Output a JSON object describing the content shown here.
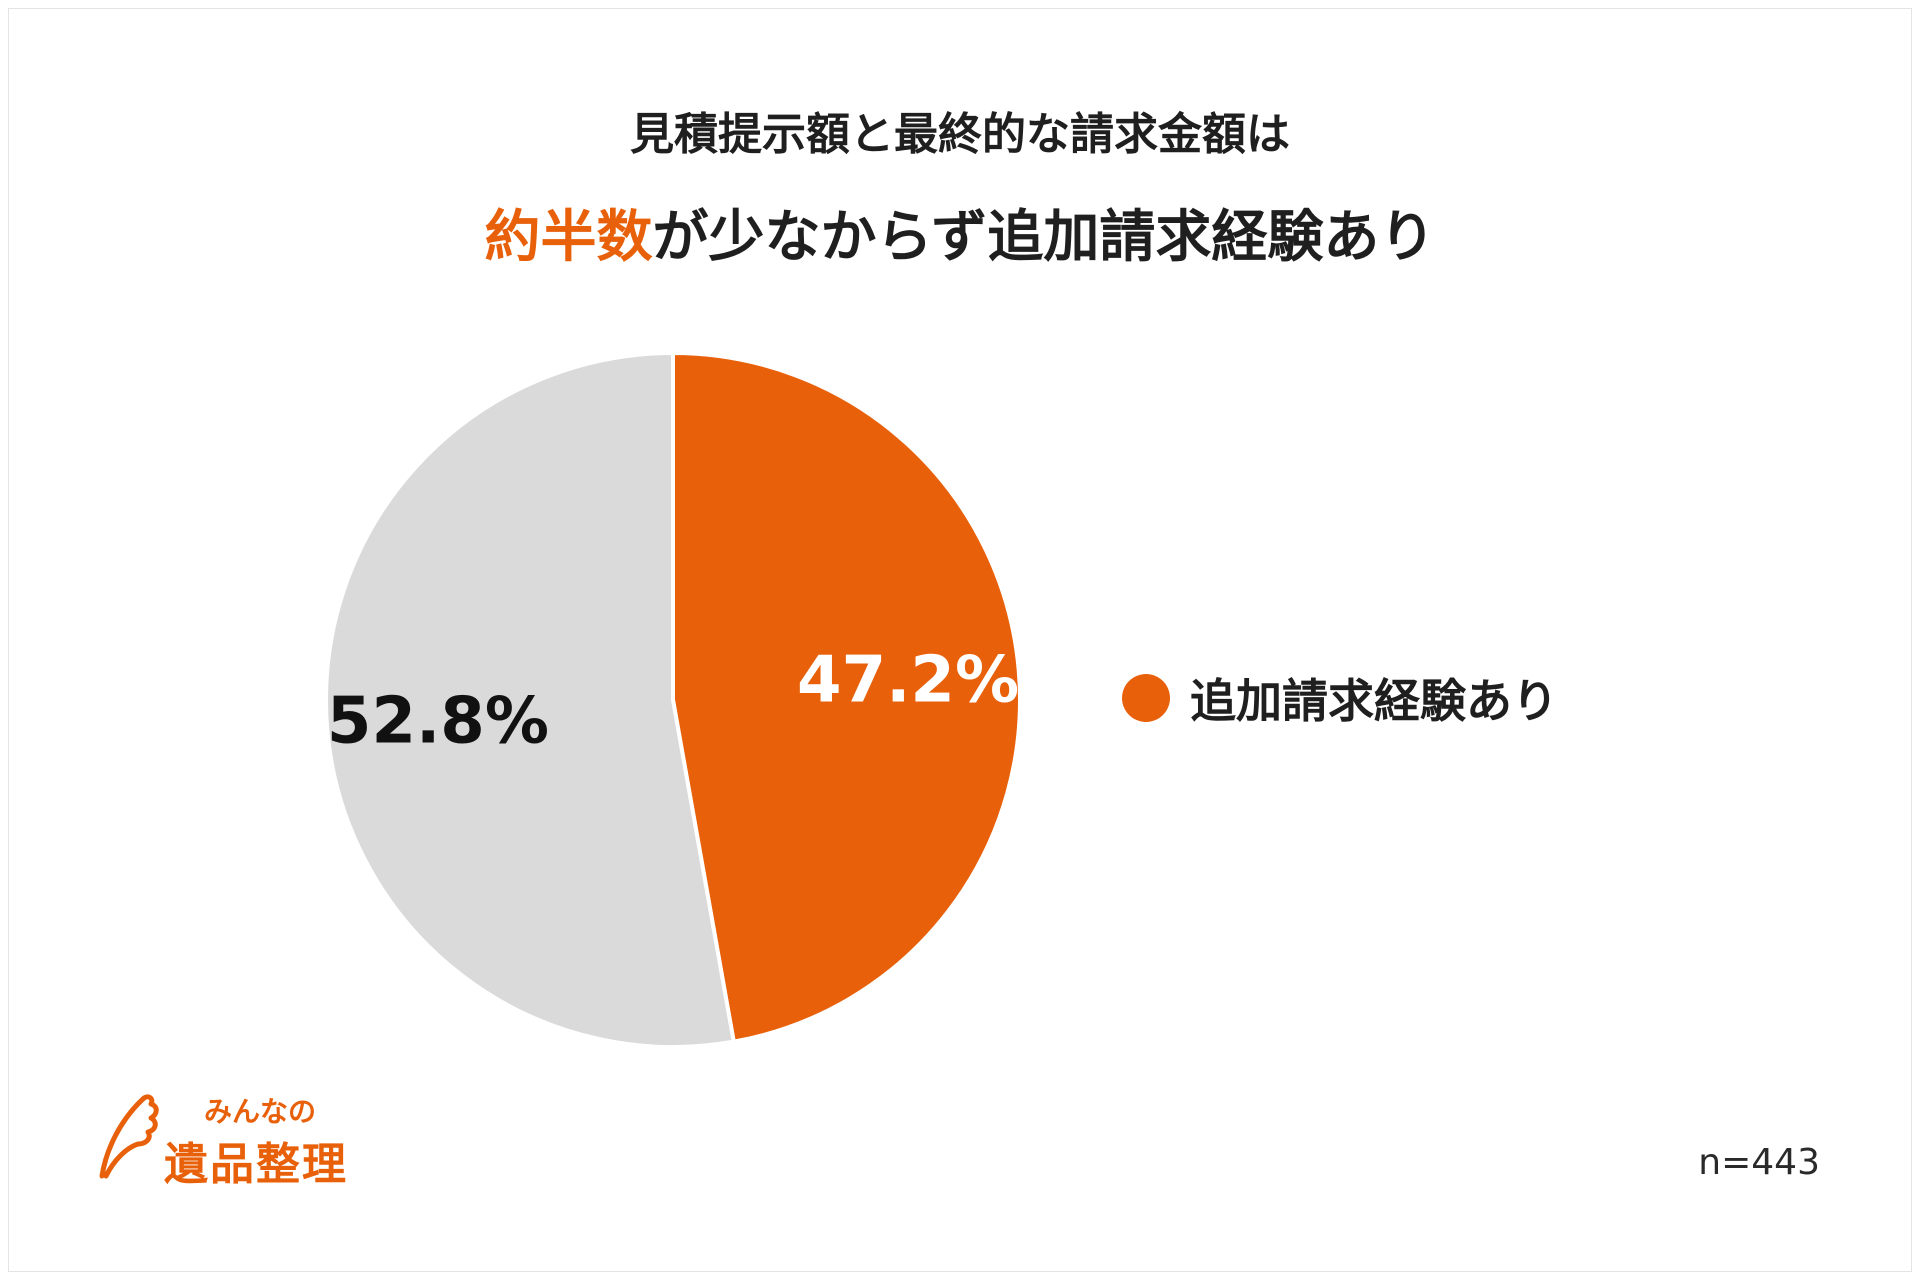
{
  "title_line1": "見積提示額と最終的な請求金額は",
  "title_line2_highlight": "約半数",
  "title_line2_rest": "が少なからず追加請求経験あり",
  "chart_data": {
    "type": "pie",
    "slices": [
      {
        "label": "追加請求経験あり",
        "value": 47.2,
        "value_label": "47.2%",
        "color": "#e8600a",
        "label_color": "#ffffff"
      },
      {
        "label": "",
        "value": 52.8,
        "value_label": "52.8%",
        "color": "#dadada",
        "label_color": "#111111"
      }
    ],
    "start": "12 o'clock, clockwise",
    "legend_placement": "right",
    "legend": [
      {
        "label": "追加請求経験あり",
        "color": "#e8600a"
      }
    ]
  },
  "sample_size": "n=443",
  "logo": {
    "sub": "みんなの",
    "main": "遺品整理",
    "icon": "wing-icon"
  }
}
